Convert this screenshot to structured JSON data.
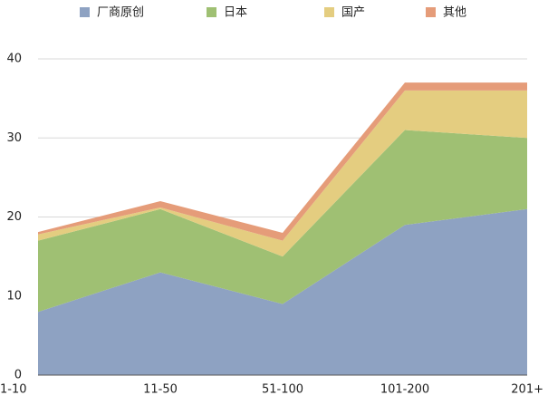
{
  "chart_data": {
    "type": "stacked-area",
    "categories": [
      "1-10",
      "11-50",
      "51-100",
      "101-200",
      "201+"
    ],
    "series": [
      {
        "name": "厂商原创",
        "color": "#8ea2c2",
        "values": [
          8,
          13,
          9,
          19,
          21
        ]
      },
      {
        "name": "日本",
        "color": "#9fc073",
        "values": [
          9,
          8,
          6,
          12,
          9
        ]
      },
      {
        "name": "国产",
        "color": "#e4cd80",
        "values": [
          0.8,
          0.2,
          2,
          5,
          6
        ]
      },
      {
        "name": "其他",
        "color": "#e59c79",
        "values": [
          0.3,
          0.8,
          1,
          1,
          1
        ]
      }
    ],
    "ylim": [
      0,
      40
    ],
    "yticks": [
      0,
      10,
      20,
      30,
      40
    ],
    "grid": true,
    "legend": "top"
  }
}
